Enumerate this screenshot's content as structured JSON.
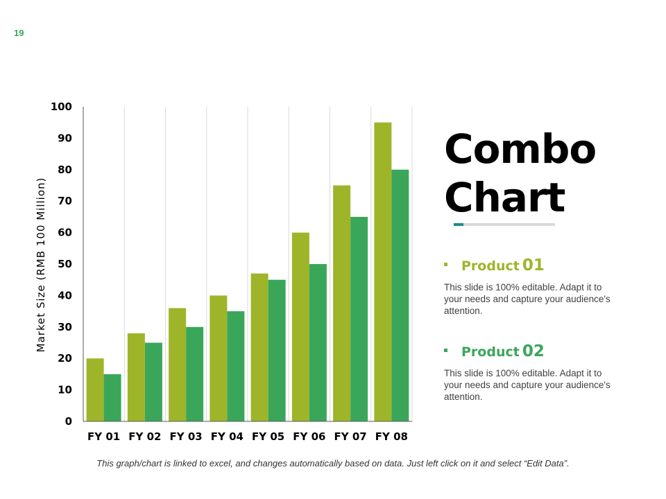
{
  "page": {
    "number": "19",
    "number_color": "#3aa65a"
  },
  "title": {
    "line1": "Combo",
    "line2": "Chart",
    "accent_color": "#1a8a8a"
  },
  "products": [
    {
      "label": "Product",
      "number": "01",
      "color": "#9eb52a",
      "description": "This slide is 100% editable. Adapt it to your needs and capture your audience's attention."
    },
    {
      "label": "Product",
      "number": "02",
      "color": "#3aa65a",
      "description": "This slide is 100% editable. Adapt it to your needs and capture your audience's attention."
    }
  ],
  "footer": {
    "note": "This graph/chart is linked to excel, and changes automatically based on data. Just left click on it and select “Edit Data”."
  },
  "chart_data": {
    "type": "bar",
    "title": "",
    "xlabel": "",
    "ylabel": "Market Size (RMB 100 Million)",
    "ylim": [
      0,
      100
    ],
    "yticks": [
      0,
      10,
      20,
      30,
      40,
      50,
      60,
      70,
      80,
      90,
      100
    ],
    "grid": "vertical",
    "categories": [
      "FY 01",
      "FY 02",
      "FY 03",
      "FY 04",
      "FY 05",
      "FY 06",
      "FY 07",
      "FY 08"
    ],
    "series": [
      {
        "name": "Product 01",
        "color": "#9eb52a",
        "values": [
          20,
          28,
          36,
          40,
          47,
          60,
          75,
          95
        ]
      },
      {
        "name": "Product 02",
        "color": "#3aa65a",
        "values": [
          15,
          25,
          30,
          35,
          45,
          50,
          65,
          80
        ]
      }
    ]
  }
}
